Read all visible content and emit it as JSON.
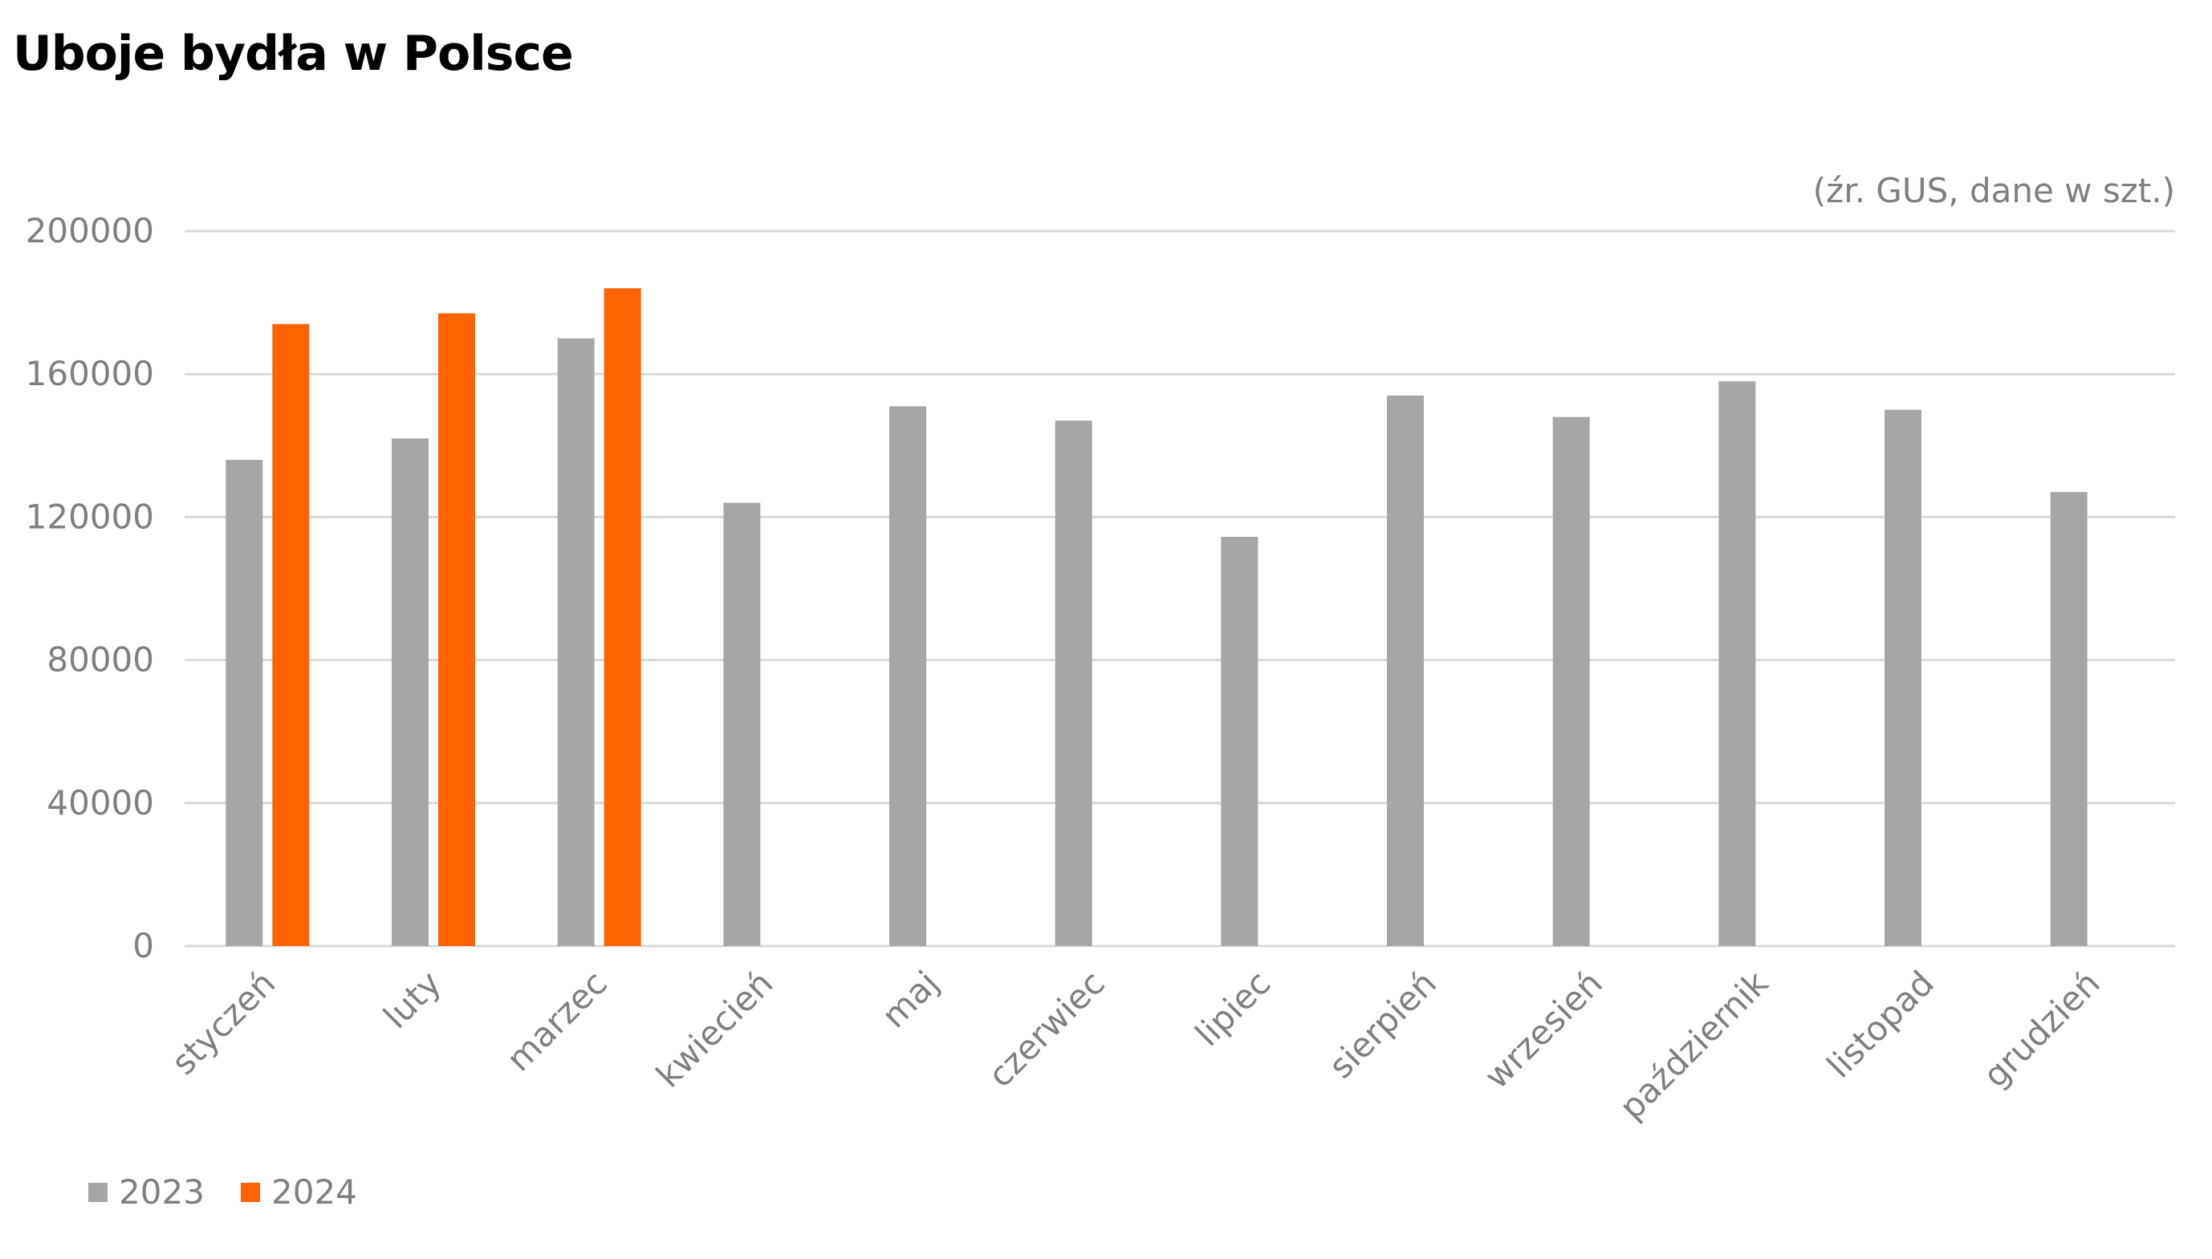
{
  "chart_data": {
    "type": "bar",
    "title": "Uboje bydła w Polsce",
    "source_note": "(źr. GUS, dane w szt.)",
    "categories": [
      "styczeń",
      "luty",
      "marzec",
      "kwiecień",
      "maj",
      "czerwiec",
      "lipiec",
      "sierpień",
      "wrzesień",
      "październik",
      "listopad",
      "grudzień"
    ],
    "series": [
      {
        "name": "2023",
        "color": "#a6a6a6",
        "values": [
          136000,
          142000,
          170000,
          124000,
          151000,
          147000,
          114500,
          154000,
          148000,
          158000,
          150000,
          127000
        ]
      },
      {
        "name": "2024",
        "color": "#ff6200",
        "values": [
          174000,
          177000,
          184000,
          null,
          null,
          null,
          null,
          null,
          null,
          null,
          null,
          null
        ]
      }
    ],
    "ylim": [
      0,
      200000
    ],
    "yticks": [
      0,
      40000,
      80000,
      120000,
      160000,
      200000
    ],
    "xlabel": "",
    "ylabel": "",
    "grid": true,
    "legend_position": "bottom-left"
  }
}
